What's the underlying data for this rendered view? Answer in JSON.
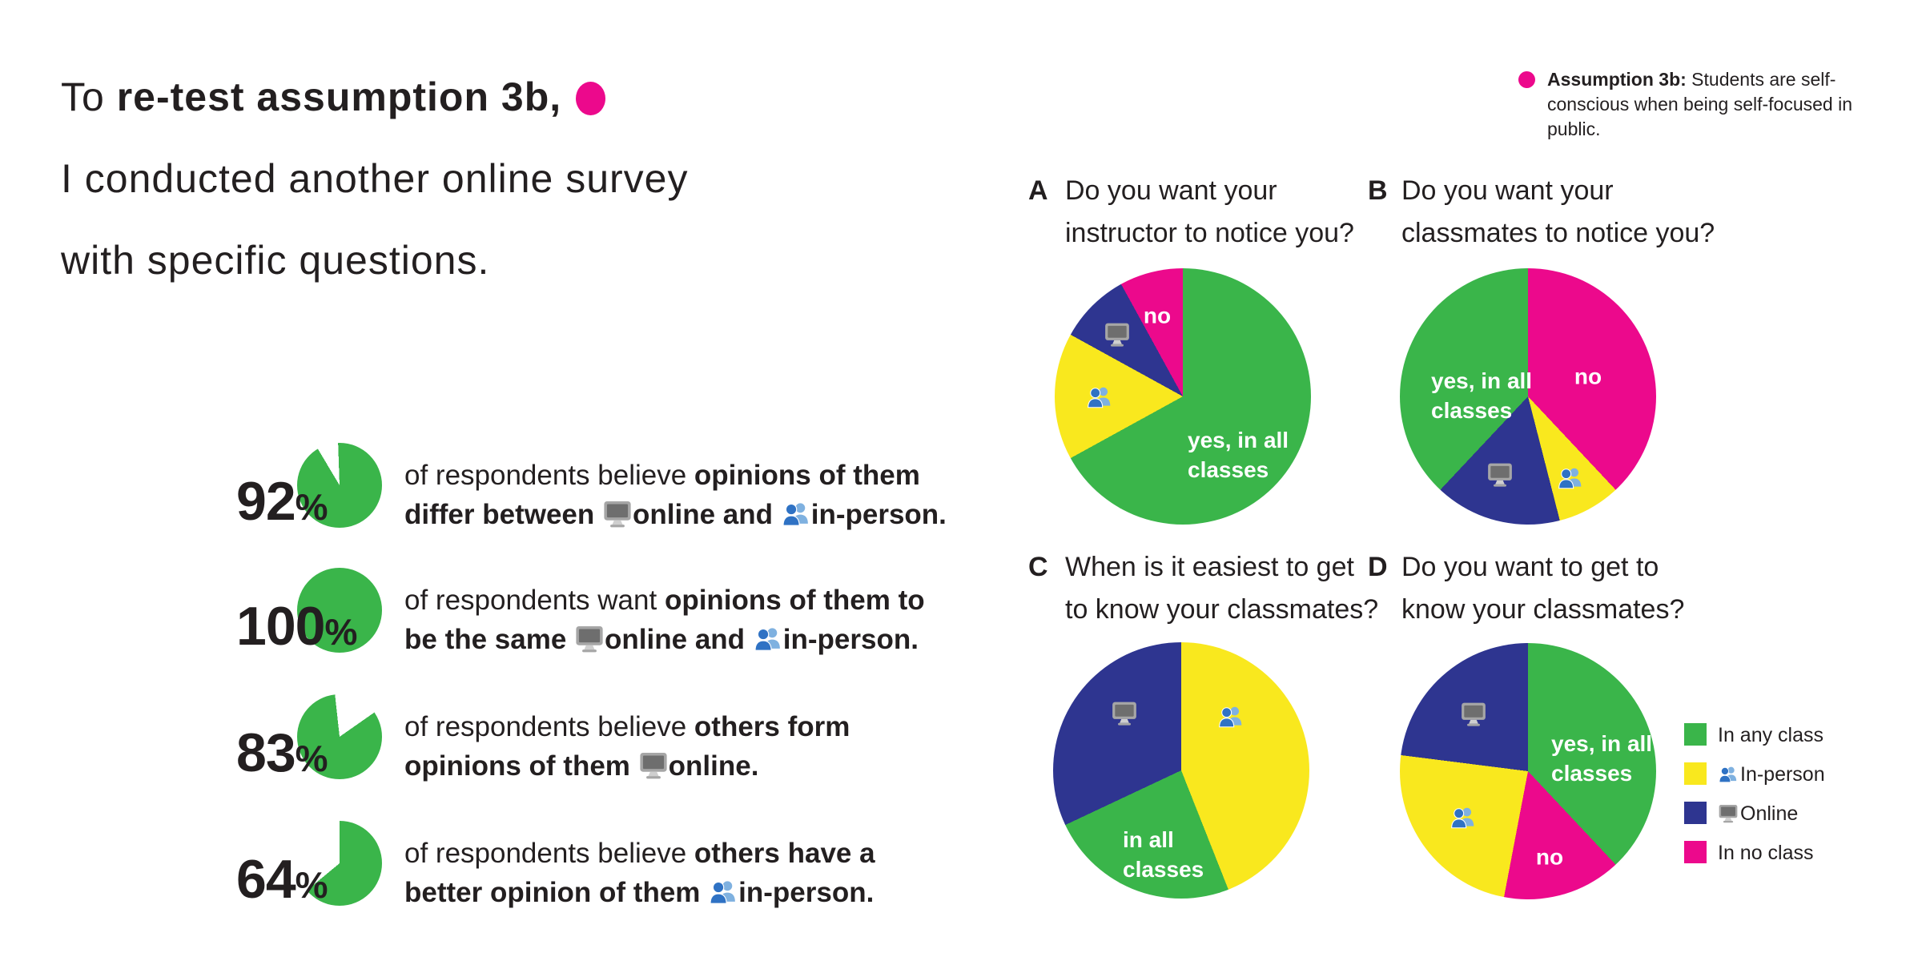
{
  "colors": {
    "green": "#3ab54a",
    "yellow": "#f9e81e",
    "blue": "#2e3590",
    "pink": "#ec098c",
    "ink": "#231f20",
    "white": "#ffffff"
  },
  "title": {
    "l1_regular": "To ",
    "l1_bold": "re-test assumption 3b,",
    "l2": "I conducted another online survey",
    "l3": "with specific questions."
  },
  "note": {
    "bold": "Assumption 3b:",
    "line1_rest": " Students are self-",
    "line2": "conscious when being self-focused in",
    "line3": "public."
  },
  "stats": [
    {
      "value": "92",
      "unit": "%",
      "pie": {
        "percent": 92,
        "start_deg": -2
      },
      "lines": [
        [
          {
            "t": "of respondents believe "
          },
          {
            "t": "opinions of them",
            "b": true
          }
        ],
        [
          {
            "t": "differ between ",
            "b": true
          },
          {
            "icon": "monitor"
          },
          {
            "t": "online and ",
            "b": true
          },
          {
            "icon": "people"
          },
          {
            "t": "in-person.",
            "b": true
          }
        ]
      ]
    },
    {
      "value": "100",
      "unit": "%",
      "pie": {
        "percent": 100,
        "start_deg": 0
      },
      "lines": [
        [
          {
            "t": "of respondents want "
          },
          {
            "t": "opinions of them to",
            "b": true
          }
        ],
        [
          {
            "t": "be the same  ",
            "b": true
          },
          {
            "icon": "monitor"
          },
          {
            "t": "online and ",
            "b": true
          },
          {
            "icon": "people"
          },
          {
            "t": "in-person.",
            "b": true
          }
        ]
      ]
    },
    {
      "value": "83",
      "unit": "%",
      "pie": {
        "percent": 83,
        "start_deg": 55
      },
      "lines": [
        [
          {
            "t": "of respondents believe "
          },
          {
            "t": "others form",
            "b": true
          }
        ],
        [
          {
            "t": "opinions of them ",
            "b": true
          },
          {
            "icon": "monitor"
          },
          {
            "t": "online.",
            "b": true
          }
        ]
      ]
    },
    {
      "value": "64",
      "unit": "%",
      "pie": {
        "percent": 64,
        "start_deg": 0
      },
      "lines": [
        [
          {
            "t": "of respondents believe "
          },
          {
            "t": "others have a",
            "b": true
          }
        ],
        [
          {
            "t": "better opinion of them ",
            "b": true
          },
          {
            "icon": "people"
          },
          {
            "t": "in-person.",
            "b": true
          }
        ]
      ]
    }
  ],
  "chart_data": [
    {
      "type": "pie",
      "letter": "A",
      "title": "Do you want your instructor to notice you?",
      "question_lines": [
        "Do you want your",
        "instructor to notice you?"
      ],
      "slices": [
        {
          "key": "yes",
          "label": "yes, in all classes",
          "color": "green",
          "value": 67,
          "slice_text": "yes, in all\nclasses"
        },
        {
          "key": "inperson",
          "label": "in-person",
          "color": "yellow",
          "value": 16,
          "icon": "people"
        },
        {
          "key": "online",
          "label": "online",
          "color": "blue",
          "value": 9,
          "icon": "monitor"
        },
        {
          "key": "no",
          "label": "no",
          "color": "pink",
          "value": 8,
          "slice_text": "no"
        }
      ]
    },
    {
      "type": "pie",
      "letter": "B",
      "title": "Do you want your classmates to notice you?",
      "question_lines": [
        "Do you want your",
        "classmates to notice you?"
      ],
      "slices": [
        {
          "key": "no",
          "label": "no",
          "color": "pink",
          "value": 38,
          "slice_text": "no"
        },
        {
          "key": "inperson",
          "label": "in-person",
          "color": "yellow",
          "value": 8,
          "icon": "people"
        },
        {
          "key": "online",
          "label": "online",
          "color": "blue",
          "value": 16,
          "icon": "monitor"
        },
        {
          "key": "yes",
          "label": "yes, in all classes",
          "color": "green",
          "value": 38,
          "slice_text": "yes, in all\nclasses"
        }
      ]
    },
    {
      "type": "pie",
      "letter": "C",
      "title": "When is it easiest to get to know your classmates?",
      "question_lines": [
        "When is it easiest to get",
        "to know your classmates?"
      ],
      "slices": [
        {
          "key": "inperson",
          "label": "in-person",
          "color": "yellow",
          "value": 44,
          "icon": "people"
        },
        {
          "key": "inall",
          "label": "in all classes",
          "color": "green",
          "value": 24,
          "slice_text": "in all\nclasses"
        },
        {
          "key": "online",
          "label": "online",
          "color": "blue",
          "value": 32,
          "icon": "monitor"
        }
      ]
    },
    {
      "type": "pie",
      "letter": "D",
      "title": "Do you want to get to know your classmates?",
      "question_lines": [
        "Do you want to get to",
        "know your classmates?"
      ],
      "slices": [
        {
          "key": "yes",
          "label": "yes, in all classes",
          "color": "green",
          "value": 38,
          "slice_text": "yes, in all\nclasses"
        },
        {
          "key": "no",
          "label": "no",
          "color": "pink",
          "value": 15,
          "slice_text": "no"
        },
        {
          "key": "inperson",
          "label": "in-person",
          "color": "yellow",
          "value": 24,
          "icon": "people"
        },
        {
          "key": "online",
          "label": "online",
          "color": "blue",
          "value": 23,
          "icon": "monitor"
        }
      ]
    },
    {
      "type": "donut-set",
      "title": "Callout percentages",
      "values": [
        92,
        100,
        83,
        64
      ],
      "unit": "%"
    }
  ],
  "legend": [
    {
      "color": "green",
      "label": "In any class"
    },
    {
      "color": "yellow",
      "label": "In-person",
      "icon": "people"
    },
    {
      "color": "blue",
      "label": "Online",
      "icon": "monitor"
    },
    {
      "color": "pink",
      "label": "In no class"
    }
  ]
}
